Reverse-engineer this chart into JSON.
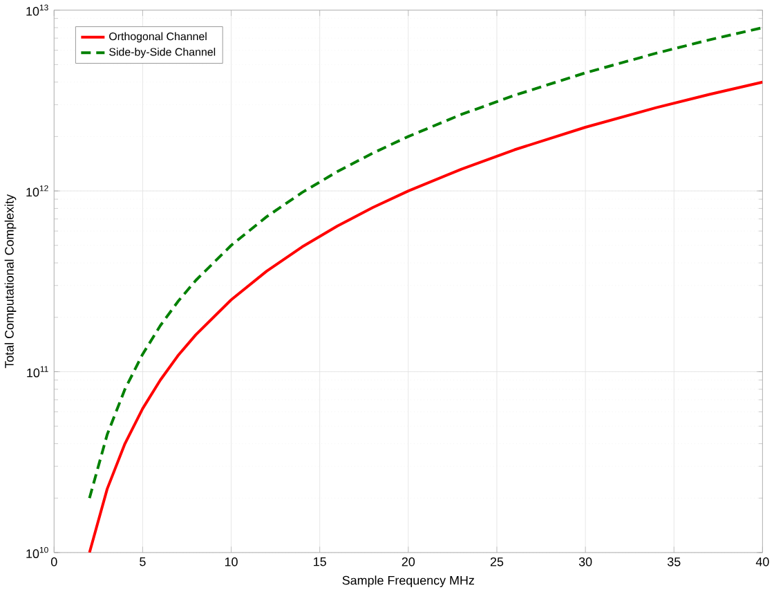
{
  "chart_data": {
    "type": "line",
    "xlabel": "Sample Frequency MHz",
    "ylabel": "Total Computational Complexity",
    "x": [
      2,
      3,
      4,
      5,
      6,
      7,
      8,
      10,
      12,
      14,
      16,
      18,
      20,
      23,
      26,
      30,
      34,
      37,
      40
    ],
    "series": [
      {
        "name": "Orthogonal Channel",
        "color": "#ff0000",
        "line_style": "solid",
        "values": [
          10000000000.0,
          22500000000.0,
          40000000000.0,
          62500000000.0,
          90000000000.0,
          123000000000.0,
          160000000000.0,
          250000000000.0,
          360000000000.0,
          490000000000.0,
          640000000000.0,
          810000000000.0,
          1000000000000.0,
          1320000000000.0,
          1690000000000.0,
          2250000000000.0,
          2890000000000.0,
          3420000000000.0,
          4000000000000.0
        ]
      },
      {
        "name": "Side-by-Side Channel",
        "color": "#008000",
        "line_style": "dashed",
        "values": [
          20000000000.0,
          45000000000.0,
          80000000000.0,
          125000000000.0,
          180000000000.0,
          245000000000.0,
          320000000000.0,
          500000000000.0,
          720000000000.0,
          980000000000.0,
          1280000000000.0,
          1620000000000.0,
          2000000000000.0,
          2650000000000.0,
          3380000000000.0,
          4500000000000.0,
          5780000000000.0,
          6850000000000.0,
          8000000000000.0
        ]
      }
    ],
    "xlim": [
      0,
      40
    ],
    "xticks": [
      0,
      5,
      10,
      15,
      20,
      25,
      30,
      35,
      40
    ],
    "ylim": [
      10000000000.0,
      10000000000000.0
    ],
    "yticks": [
      {
        "value": 10000000000.0,
        "label": "10$^{10}$"
      },
      {
        "value": 100000000000.0,
        "label": "10$^{11}$"
      },
      {
        "value": 1000000000000.0,
        "label": "10$^{12}$"
      },
      {
        "value": 10000000000000.0,
        "label": "10$^{13}$"
      }
    ],
    "log": "y",
    "grid": true,
    "legend": "top left",
    "marker": "none"
  }
}
